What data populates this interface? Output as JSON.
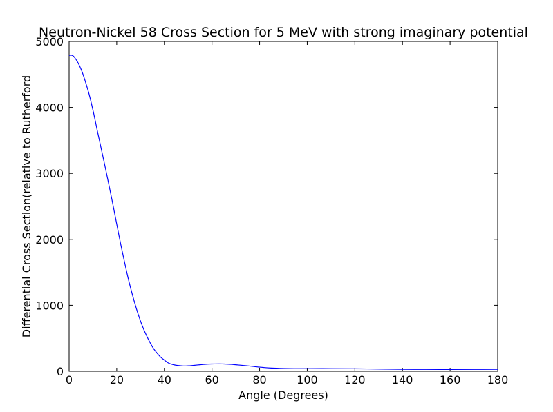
{
  "chart_data": {
    "type": "line",
    "title": "Neutron-Nickel 58 Cross Section for 5 MeV with strong imaginary potential",
    "xlabel": "Angle (Degrees)",
    "ylabel": "Differential Cross Section(relative to Rutherford",
    "xlim": [
      0,
      180
    ],
    "ylim": [
      0,
      5000
    ],
    "xticks": [
      0,
      20,
      40,
      60,
      80,
      100,
      120,
      140,
      160,
      180
    ],
    "yticks": [
      0,
      1000,
      2000,
      3000,
      4000,
      5000
    ],
    "grid": false,
    "line_color": "#0000ff",
    "series": [
      {
        "x": [
          0,
          2,
          5,
          8,
          10,
          12,
          15,
          18,
          20,
          22,
          25,
          28,
          30,
          32,
          35,
          38,
          40,
          42,
          45,
          48,
          50,
          52,
          55,
          58,
          60,
          63,
          65,
          68,
          70,
          75,
          80,
          85,
          90,
          95,
          100,
          110,
          120,
          130,
          140,
          150,
          160,
          170,
          180
        ],
        "y": [
          4790,
          4770,
          4580,
          4250,
          3960,
          3620,
          3120,
          2600,
          2230,
          1870,
          1380,
          980,
          760,
          580,
          370,
          230,
          170,
          120,
          90,
          80,
          82,
          88,
          98,
          107,
          110,
          112,
          110,
          104,
          98,
          82,
          62,
          48,
          42,
          40,
          40,
          40,
          38,
          34,
          30,
          28,
          27,
          28,
          30
        ]
      }
    ]
  }
}
